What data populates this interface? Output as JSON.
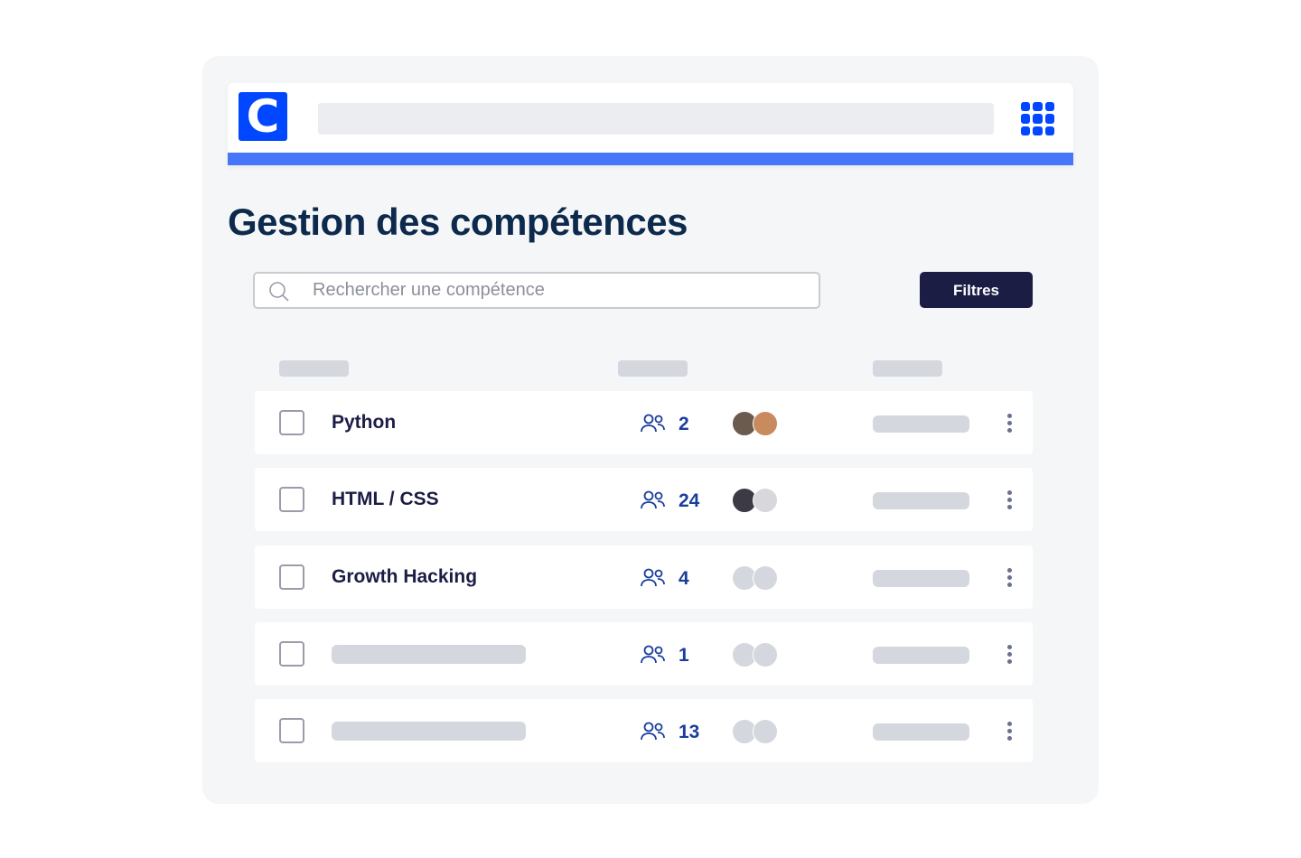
{
  "header": {
    "logo_letter": "C"
  },
  "page": {
    "title": "Gestion des compétences"
  },
  "search": {
    "placeholder": "Rechercher une compétence"
  },
  "filters_label": "Filtres",
  "colors": {
    "brand": "#0047ff",
    "accent_bar": "#4776f8",
    "button": "#1b1d45",
    "count": "#1a3e9e"
  },
  "rows": [
    {
      "label": "Python",
      "count": "2",
      "avatars": [
        "#6b5a4e",
        "#c98a5e"
      ]
    },
    {
      "label": "HTML / CSS",
      "count": "24",
      "avatars": [
        "#3c3a45",
        "#d8d8dc"
      ]
    },
    {
      "label": "Growth Hacking",
      "count": "4",
      "avatars": [
        "#d5d7de",
        "#d5d7de"
      ]
    },
    {
      "label": null,
      "count": "1",
      "avatars": [
        "#d5d7de",
        "#d5d7de"
      ]
    },
    {
      "label": null,
      "count": "13",
      "avatars": [
        "#d5d7de",
        "#d5d7de"
      ]
    }
  ]
}
